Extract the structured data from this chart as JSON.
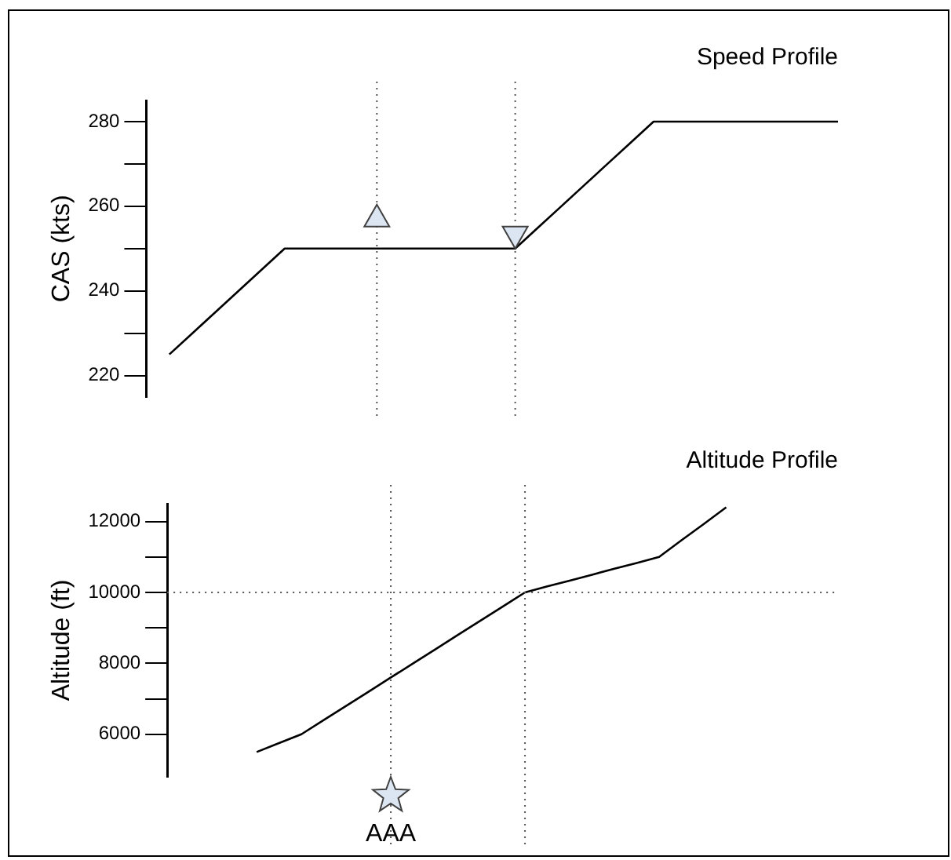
{
  "chart_data": [
    {
      "type": "line",
      "title": "Speed Profile",
      "ylabel": "CAS (kts)",
      "categories": [
        null,
        null,
        null,
        null,
        null,
        null,
        null,
        null,
        null,
        null,
        null,
        null,
        null,
        null,
        null,
        null,
        null,
        null,
        null,
        null,
        null,
        null,
        null,
        null,
        null,
        null,
        null,
        null,
        null,
        null,
        null
      ],
      "series": [
        {
          "color": "#000000",
          "values": [
            null,
            225,
            230,
            235,
            240,
            245,
            250,
            250,
            250,
            250,
            250,
            250,
            250,
            250,
            250,
            250,
            250,
            255,
            260,
            265,
            270,
            275,
            280,
            280,
            280,
            280,
            280,
            280,
            280,
            280,
            280
          ]
        }
      ],
      "ylim": [
        215,
        285
      ],
      "yticks": [
        220,
        {
          "value": 230,
          "label": null
        },
        240,
        {
          "value": 250,
          "label": null
        },
        260,
        {
          "value": 270,
          "label": null
        },
        280
      ],
      "grid": false,
      "legend": false,
      "tick_labels": "y"
    },
    {
      "type": "line",
      "title": "Altitude Profile",
      "ylabel": "Altitude (ft)",
      "annotations": [
        "AAA"
      ],
      "categories": [
        null,
        null,
        null,
        null,
        null,
        null,
        null,
        null,
        null,
        null,
        null,
        null,
        null,
        null,
        null,
        null,
        null,
        null,
        null,
        null,
        null,
        null,
        null,
        null,
        null,
        null,
        null,
        null,
        null,
        null,
        null
      ],
      "series": [
        {
          "color": "#000000",
          "values": [
            null,
            null,
            null,
            null,
            5500,
            5750,
            6000,
            6400,
            6800,
            7200,
            7600,
            8000,
            8400,
            8800,
            9200,
            9600,
            10000,
            10170,
            10330,
            10500,
            10670,
            10830,
            11000,
            11470,
            11930,
            12400,
            null,
            null,
            null,
            null,
            null
          ]
        }
      ],
      "ylim": [
        4800,
        12500
      ],
      "yticks": [
        6000,
        {
          "value": 7000,
          "label": null
        },
        8000,
        {
          "value": 9000,
          "label": null
        },
        10000,
        {
          "value": 11000,
          "label": null
        },
        12000
      ],
      "ref_lines": [
        {
          "axis": "y",
          "value": 10000,
          "line_style": "dotted",
          "color": "#555555"
        }
      ],
      "grid": false,
      "legend": false,
      "tick_labels": "y"
    }
  ]
}
